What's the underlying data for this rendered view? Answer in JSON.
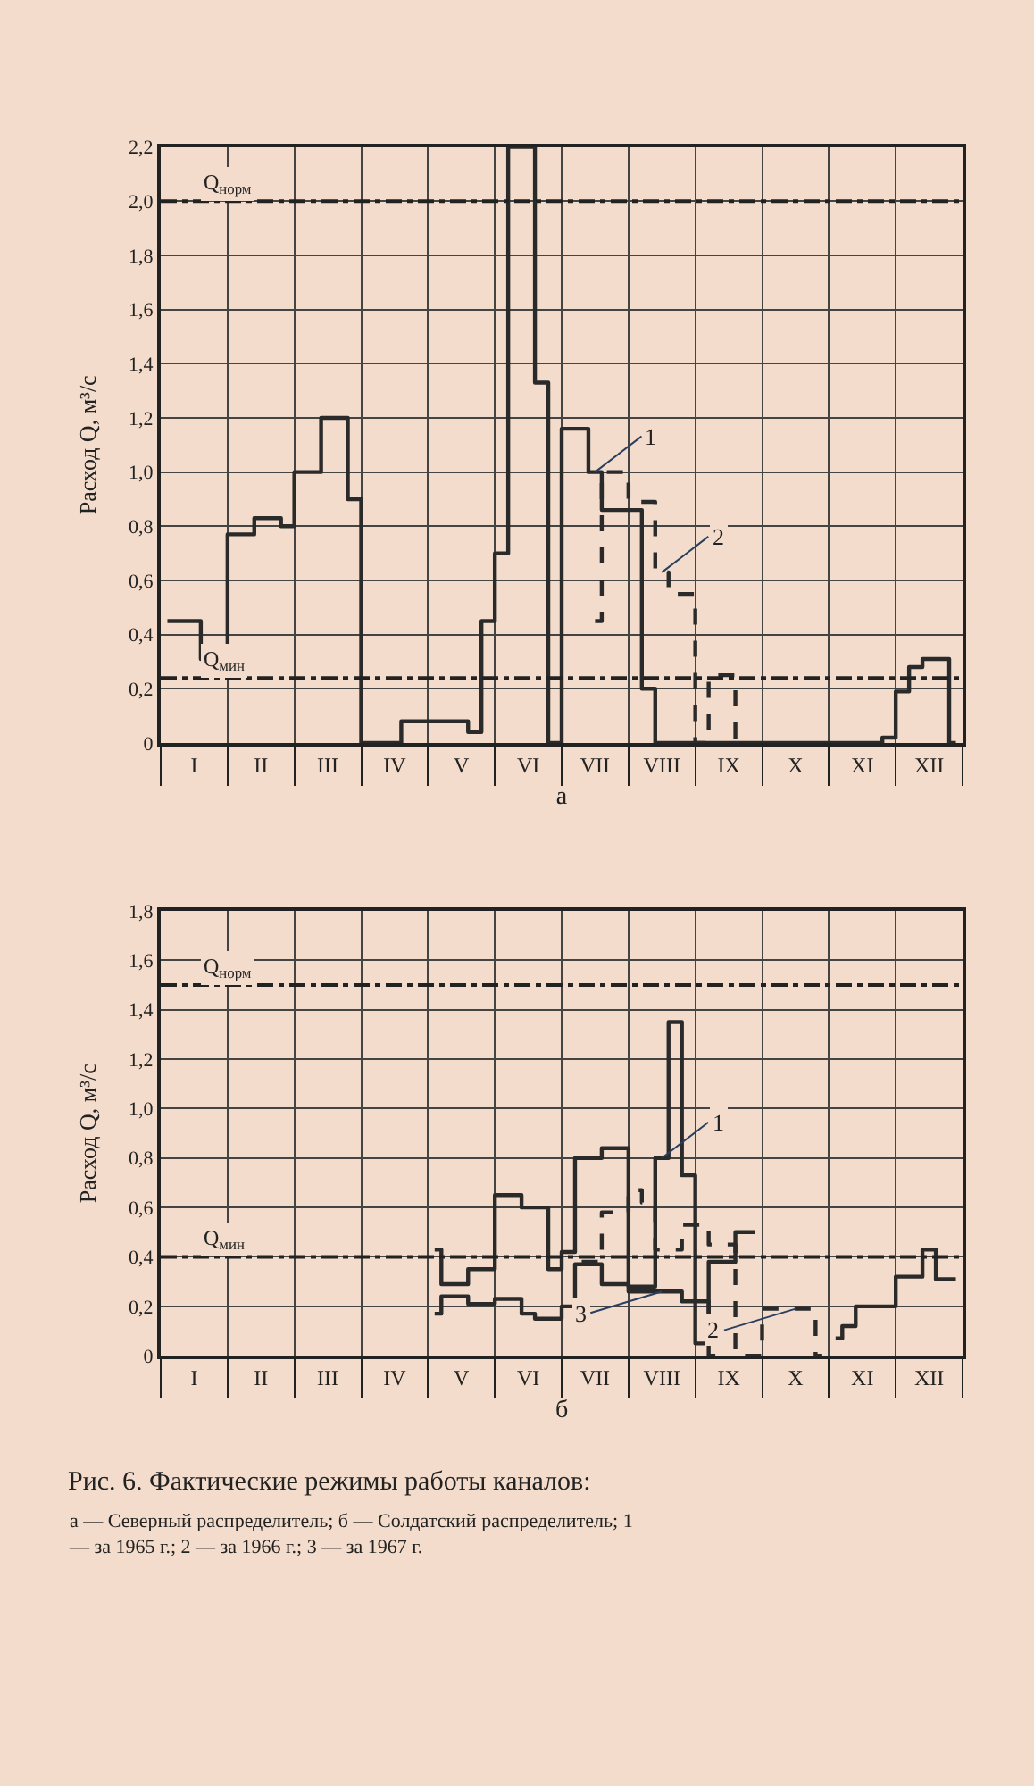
{
  "chart_data": [
    {
      "type": "step",
      "xlabel": "а",
      "ylabel": "Расход Q, м³/с",
      "categories": [
        null,
        null,
        "I",
        null,
        null,
        null,
        null,
        "II",
        null,
        null,
        null,
        null,
        "III",
        null,
        null,
        null,
        null,
        "IV",
        null,
        null,
        null,
        null,
        "V",
        null,
        null,
        null,
        null,
        "VI",
        null,
        null,
        null,
        null,
        "VII",
        null,
        null,
        null,
        null,
        "VIII",
        null,
        null,
        null,
        null,
        "IX",
        null,
        null,
        null,
        null,
        "X",
        null,
        null,
        null,
        null,
        "XI",
        null,
        null,
        null,
        null,
        "XII",
        null,
        null
      ],
      "ylim": [
        0,
        2.2
      ],
      "yticks": [
        {
          "value": 0,
          "label": "0"
        },
        {
          "value": 0.2,
          "label": "0,2"
        },
        {
          "value": 0.4,
          "label": "0,4"
        },
        {
          "value": 0.6,
          "label": "0,6"
        },
        {
          "value": 0.8,
          "label": "0,8"
        },
        {
          "value": 1.0,
          "label": "1,0"
        },
        {
          "value": 1.2,
          "label": "1,2"
        },
        {
          "value": 1.4,
          "label": "1,4"
        },
        {
          "value": 1.6,
          "label": "1,6"
        },
        {
          "value": 1.8,
          "label": "1,8"
        },
        {
          "value": 2.0,
          "label": "2,0"
        },
        {
          "value": 2.2,
          "label": "2,2"
        }
      ],
      "grid": true,
      "series": [
        {
          "color": "#2a2a2a",
          "line_style": "solid",
          "values": [
            0.45,
            0.45,
            0.45,
            0.31,
            0.31,
            0.77,
            0.77,
            0.83,
            0.83,
            0.8,
            1.0,
            1.0,
            1.2,
            1.2,
            0.9,
            0,
            0,
            0,
            0.08,
            0.08,
            0.08,
            0.08,
            0.08,
            0.04,
            0.45,
            0.7,
            2.2,
            2.2,
            1.33,
            0,
            1.16,
            1.16,
            1.0,
            0.86,
            0.86,
            0.86,
            0.2,
            0,
            0,
            0,
            0,
            0,
            0,
            0,
            0,
            0,
            0,
            0,
            0,
            0,
            0,
            0,
            0,
            0,
            0.02,
            0.19,
            0.28,
            0.31,
            0.31,
            0
          ]
        },
        {
          "color": "#2a2a2a",
          "line_style": "dashed",
          "values": [
            null,
            null,
            null,
            null,
            null,
            null,
            null,
            null,
            null,
            null,
            null,
            null,
            null,
            null,
            null,
            null,
            null,
            null,
            null,
            null,
            null,
            null,
            null,
            null,
            null,
            null,
            null,
            null,
            null,
            null,
            null,
            null,
            0.45,
            1.0,
            1.0,
            0.89,
            0.89,
            0.63,
            0.55,
            0.55,
            0,
            0.25,
            0.25,
            0,
            null,
            null,
            null,
            null,
            null,
            null,
            null,
            null,
            null,
            null,
            null,
            null,
            null,
            null,
            null,
            null
          ]
        }
      ],
      "ref_lines": [
        {
          "axis": "y",
          "value": 2.0,
          "label": "Q$_{норм}$",
          "line_style": "dashdot"
        },
        {
          "axis": "y",
          "value": 0.24,
          "label": "Q$_{мин}$",
          "line_style": "dashdot"
        }
      ],
      "annotations": [
        {
          "text": "1",
          "x": "VII",
          "y": 1.0
        },
        {
          "text": "2",
          "x": "VIII",
          "y": 0.63
        }
      ]
    },
    {
      "type": "step",
      "xlabel": "б",
      "ylabel": "Расход Q, м³/с",
      "categories": [
        null,
        null,
        "I",
        null,
        null,
        null,
        null,
        "II",
        null,
        null,
        null,
        null,
        "III",
        null,
        null,
        null,
        null,
        "IV",
        null,
        null,
        null,
        null,
        "V",
        null,
        null,
        null,
        null,
        "VI",
        null,
        null,
        null,
        null,
        "VII",
        null,
        null,
        null,
        null,
        "VIII",
        null,
        null,
        null,
        null,
        "IX",
        null,
        null,
        null,
        null,
        "X",
        null,
        null,
        null,
        null,
        "XI",
        null,
        null,
        null,
        null,
        "XII",
        null,
        null
      ],
      "ylim": [
        0,
        1.8
      ],
      "yticks": [
        {
          "value": 0,
          "label": "0"
        },
        {
          "value": 0.2,
          "label": "0,2"
        },
        {
          "value": 0.4,
          "label": "0,4"
        },
        {
          "value": 0.6,
          "label": "0,6"
        },
        {
          "value": 0.8,
          "label": "0,8"
        },
        {
          "value": 1.0,
          "label": "1,0"
        },
        {
          "value": 1.2,
          "label": "1,2"
        },
        {
          "value": 1.4,
          "label": "1,4"
        },
        {
          "value": 1.6,
          "label": "1,6"
        },
        {
          "value": 1.8,
          "label": "1,8"
        }
      ],
      "grid": true,
      "series": [
        {
          "color": "#2a2a2a",
          "line_style": "solid",
          "values": [
            null,
            null,
            null,
            null,
            null,
            null,
            null,
            null,
            null,
            null,
            null,
            null,
            null,
            null,
            null,
            null,
            null,
            null,
            null,
            null,
            0.43,
            0.29,
            0.29,
            0.35,
            0.35,
            0.65,
            0.65,
            0.6,
            0.6,
            0.35,
            0.42,
            0.8,
            0.8,
            0.84,
            0.84,
            0.28,
            0.28,
            0.8,
            1.35,
            0.73,
            0.05,
            0.38,
            0.38,
            0.5,
            0.5,
            null,
            null,
            null,
            null,
            null,
            0.07,
            0.12,
            0.2,
            0.2,
            0.2,
            0.32,
            0.32,
            0.43,
            0.31,
            0.31
          ]
        },
        {
          "color": "#2a2a2a",
          "line_style": "dashed",
          "values": [
            null,
            null,
            null,
            null,
            null,
            null,
            null,
            null,
            null,
            null,
            null,
            null,
            null,
            null,
            null,
            null,
            null,
            null,
            null,
            null,
            null,
            null,
            null,
            null,
            null,
            null,
            null,
            null,
            null,
            null,
            null,
            0.38,
            0.38,
            0.58,
            0.58,
            0.67,
            0.62,
            0.43,
            0.43,
            0.53,
            0.53,
            0.45,
            0.45,
            0,
            0,
            0.19,
            0.19,
            0.19,
            0.19,
            0,
            null,
            null,
            null,
            null,
            null,
            null,
            null,
            null,
            null,
            null
          ]
        },
        {
          "color": "#2a2a2a",
          "line_style": "solid",
          "values": [
            null,
            null,
            null,
            null,
            null,
            null,
            null,
            null,
            null,
            null,
            null,
            null,
            null,
            null,
            null,
            null,
            null,
            null,
            null,
            null,
            0.17,
            0.24,
            0.24,
            0.21,
            0.21,
            0.23,
            0.23,
            0.17,
            0.15,
            0.15,
            0.2,
            0.37,
            0.37,
            0.29,
            0.29,
            0.26,
            0.26,
            0.26,
            0.26,
            0.22,
            0.22,
            0,
            null,
            null,
            null,
            null,
            null,
            null,
            null,
            null,
            null,
            null,
            null,
            null,
            null,
            null,
            null,
            null,
            null,
            null
          ]
        }
      ],
      "ref_lines": [
        {
          "axis": "y",
          "value": 1.5,
          "label": "Q$_{норм}$",
          "line_style": "dashdot"
        },
        {
          "axis": "y",
          "value": 0.4,
          "label": "Q$_{мин}$",
          "line_style": "dashdot"
        }
      ],
      "annotations": [
        {
          "text": "1",
          "x": "VIII",
          "y": 0.8
        },
        {
          "text": "3",
          "x": "VIII",
          "y": 0.26
        },
        {
          "text": "2",
          "x": "X",
          "y": 0.19
        },
        "Рис. 6. Фактические режимы работы каналов:",
        "а — Северный распределитель; б — Солдатский распределитель; 1 — за 1965 г.; 2 — за 1966 г.; 3 — за 1967 г."
      ]
    }
  ]
}
